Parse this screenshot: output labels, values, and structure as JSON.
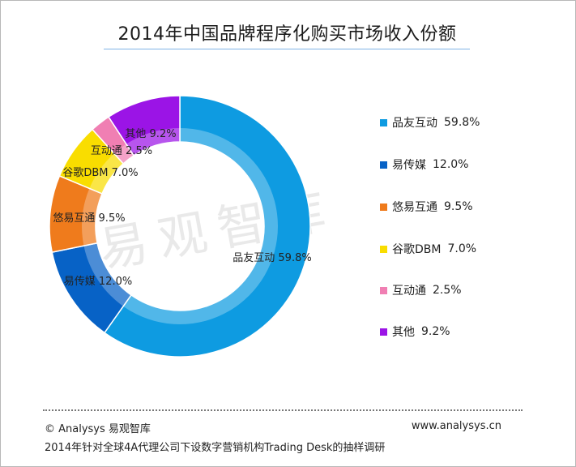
{
  "title": "2014年中国品牌程序化购买市场收入份额",
  "watermark": "易观智库",
  "chart_data": {
    "type": "pie",
    "variant": "donut",
    "unit": "%",
    "legend_position": "right",
    "slices": [
      {
        "name": "品友互动",
        "value": 59.8,
        "label": "59.8%",
        "color": "#0e9be1"
      },
      {
        "name": "易传媒",
        "value": 12.0,
        "label": "12.0%",
        "color": "#0762c6"
      },
      {
        "name": "悠易互通",
        "value": 9.5,
        "label": "9.5%",
        "color": "#ef7b1c"
      },
      {
        "name": "谷歌DBM",
        "value": 7.0,
        "label": "7.0%",
        "color": "#f9dd00"
      },
      {
        "name": "互动通",
        "value": 2.5,
        "label": "2.5%",
        "color": "#f07fb3"
      },
      {
        "name": "其他",
        "value": 9.2,
        "label": "9.2%",
        "color": "#9b14e6"
      }
    ]
  },
  "footer": {
    "copyright": "© Analysys 易观智库",
    "website": "www.analysys.cn",
    "note": "2014年针对全球4A代理公司下设数字营销机构Trading Desk的抽样调研"
  }
}
